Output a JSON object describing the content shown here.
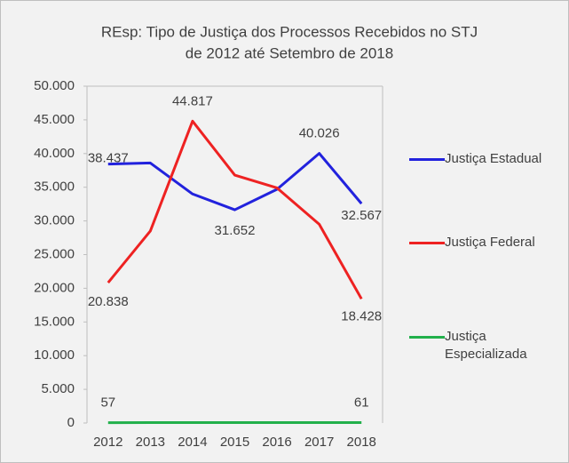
{
  "chart_data": {
    "type": "line",
    "title": [
      "REsp: Tipo de Justiça dos Processos Recebidos no STJ",
      "de 2012 até Setembro de 2018"
    ],
    "categories": [
      "2012",
      "2013",
      "2014",
      "2015",
      "2016",
      "2017",
      "2018"
    ],
    "series": [
      {
        "name": "Justiça Estadual",
        "color": "#2222dd",
        "values": [
          38437,
          38600,
          34000,
          31652,
          34700,
          40026,
          32567
        ],
        "value_labels": [
          "38.437",
          null,
          null,
          "31.652",
          null,
          "40.026",
          "32.567"
        ]
      },
      {
        "name": "Justiça Federal",
        "color": "#ee2222",
        "values": [
          20838,
          28500,
          44817,
          36800,
          34900,
          29500,
          18428
        ],
        "value_labels": [
          "20.838",
          null,
          "44.817",
          null,
          null,
          null,
          "18.428"
        ]
      },
      {
        "name": "Justiça Especializada",
        "color": "#22b04b",
        "values": [
          57,
          60,
          62,
          58,
          59,
          60,
          61
        ],
        "value_labels": [
          "57",
          null,
          null,
          null,
          null,
          null,
          "61"
        ]
      }
    ],
    "ylim": [
      0,
      50000
    ],
    "yticks": [
      {
        "value": 0,
        "label": "0"
      },
      {
        "value": 5000,
        "label": "5.000"
      },
      {
        "value": 10000,
        "label": "10.000"
      },
      {
        "value": 15000,
        "label": "15.000"
      },
      {
        "value": 20000,
        "label": "20.000"
      },
      {
        "value": 25000,
        "label": "25.000"
      },
      {
        "value": 30000,
        "label": "30.000"
      },
      {
        "value": 35000,
        "label": "35.000"
      },
      {
        "value": 40000,
        "label": "40.000"
      },
      {
        "value": 45000,
        "label": "45.000"
      },
      {
        "value": 50000,
        "label": "50.000"
      }
    ],
    "grid": false,
    "legend": "right"
  }
}
